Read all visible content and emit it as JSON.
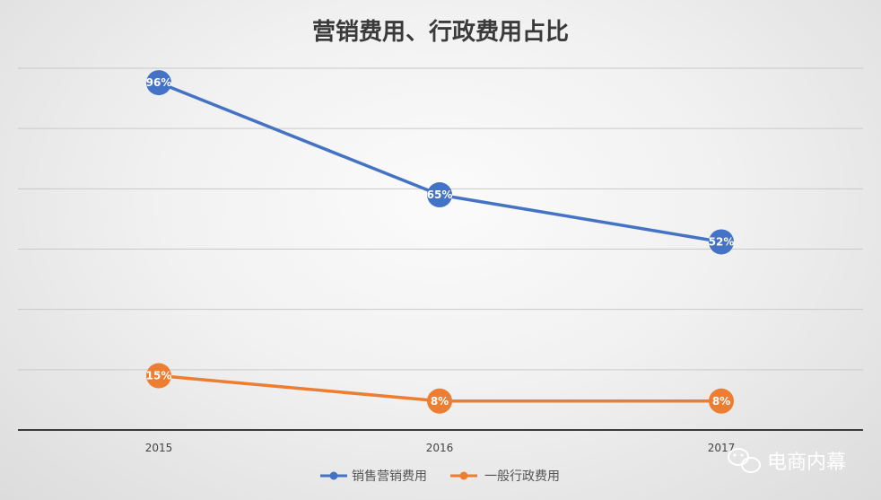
{
  "chart_data": {
    "type": "line",
    "title": "营销费用、行政费用占比",
    "categories": [
      "2015",
      "2016",
      "2017"
    ],
    "ylim": [
      0,
      100
    ],
    "grid": true,
    "legend_position": "bottom",
    "series": [
      {
        "name": "销售营销费用",
        "color": "#4472c4",
        "values": [
          96,
          65,
          52
        ],
        "labels": [
          "96%",
          "65%",
          "52%"
        ]
      },
      {
        "name": "一般行政费用",
        "color": "#ed7d31",
        "values": [
          15,
          8,
          8
        ],
        "labels": [
          "15%",
          "8%",
          "8%"
        ]
      }
    ]
  },
  "watermark": {
    "text": "电商内幕",
    "icon": "wechat-icon"
  }
}
